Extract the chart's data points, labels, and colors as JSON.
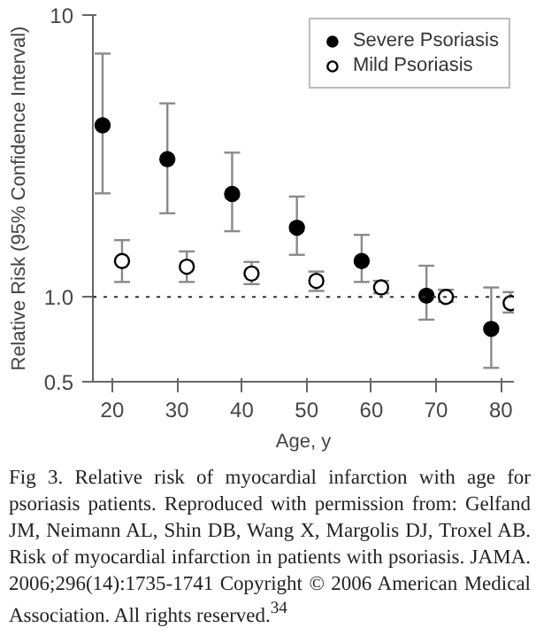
{
  "chart_data": {
    "type": "scatter",
    "xlabel": "Age, y",
    "ylabel": "Relative Risk (95% Confidence Interval)",
    "series": [
      {
        "name": "Severe Psoriasis",
        "color": "#000000",
        "x": [
          18.5,
          28.5,
          38.5,
          48.5,
          58.5,
          68.5,
          78.5
        ],
        "values": [
          4.06,
          3.08,
          2.32,
          1.76,
          1.34,
          1.01,
          0.77
        ],
        "errors": [
          [
            2.33,
            7.3
          ],
          [
            1.98,
            4.86
          ],
          [
            1.71,
            3.25
          ],
          [
            1.41,
            2.27
          ],
          [
            1.13,
            1.66
          ],
          [
            0.83,
            1.29
          ],
          [
            0.56,
            1.08
          ]
        ]
      },
      {
        "name": "Mild Psoriasis",
        "color": "#ffffff",
        "x": [
          21.5,
          31.5,
          41.5,
          51.5,
          61.5,
          71.5,
          81.5
        ],
        "values": [
          1.34,
          1.28,
          1.21,
          1.14,
          1.08,
          1.0,
          0.95
        ],
        "errors": [
          [
            1.13,
            1.59
          ],
          [
            1.13,
            1.45
          ],
          [
            1.11,
            1.33
          ],
          [
            1.05,
            1.23
          ],
          [
            1.03,
            1.14
          ],
          [
            0.96,
            1.06
          ],
          [
            0.88,
            1.04
          ]
        ]
      }
    ],
    "xlim": [
      17,
      82
    ],
    "xticks": [
      20,
      30,
      40,
      50,
      60,
      70,
      80
    ],
    "ylim": [
      0.5,
      10
    ],
    "yticks": [
      0.5,
      {
        "value": 1,
        "label": "1.0"
      },
      10
    ],
    "log": "y",
    "grid": false,
    "legend": "top right",
    "marker": "circle",
    "ref_lines": [
      {
        "axis": "y",
        "value": 1,
        "line_style": "dotted"
      }
    ],
    "annotations": [
      "Fig 3. Relative risk of myocardial infarction with age for psoriasis patients. Reproduced with permission from: Gelfand JM, Neimann AL, Shin DB, Wang X, Margolis DJ, Troxel AB. Risk of myocardial infarction in patients with psoriasis. JAMA. 2006;296(14):1735-1741 Copyright © 2006 American Medical Association. All rights reserved.$^{34}$"
    ]
  }
}
